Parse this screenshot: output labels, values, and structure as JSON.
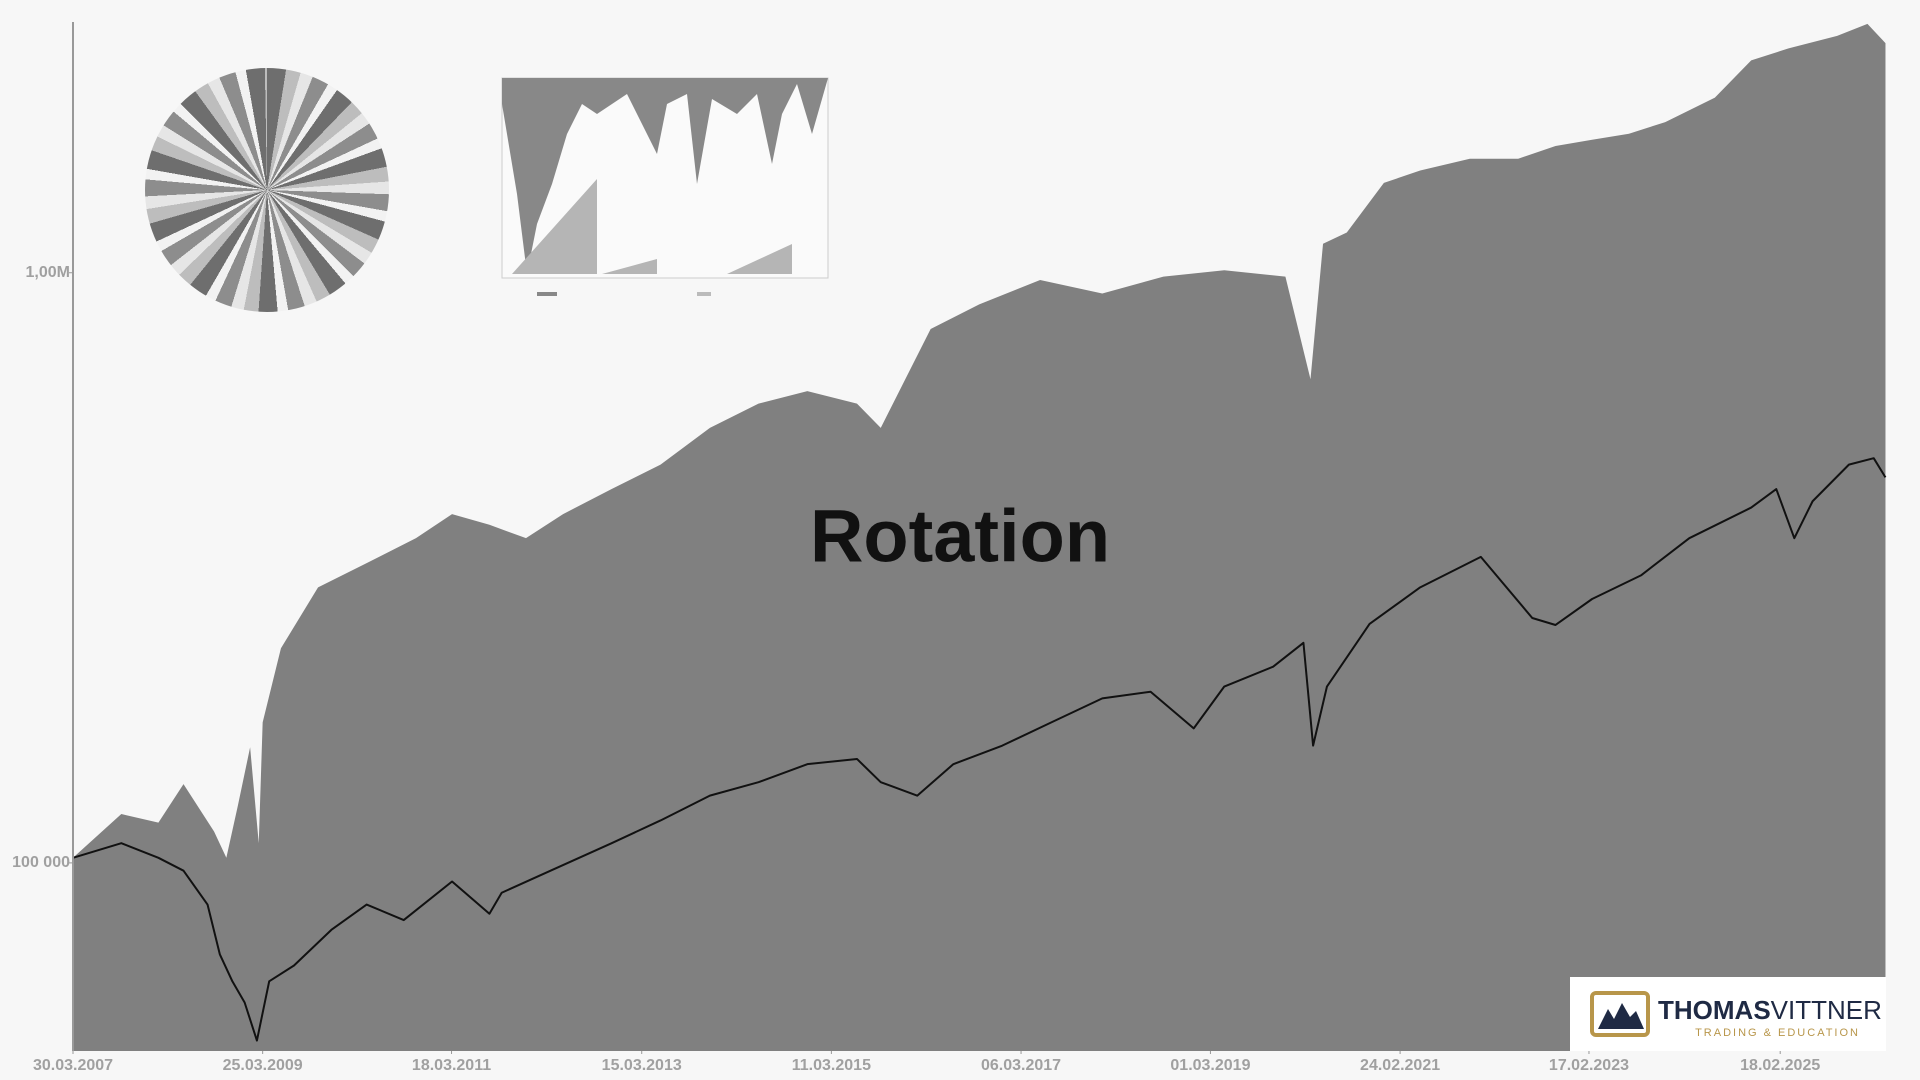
{
  "chart_data": {
    "type": "area-line",
    "title": "Rotation",
    "log_y": true,
    "background": "#f7f7f7",
    "xlim": [
      "2007-03-30",
      "2026-03-30"
    ],
    "ylim": [
      48000,
      2660000
    ],
    "xticks": [
      {
        "value": "2007-03-30",
        "label": "30.03.2007"
      },
      {
        "value": "2009-03-25",
        "label": "25.03.2009"
      },
      {
        "value": "2011-03-18",
        "label": "18.03.2011"
      },
      {
        "value": "2013-03-15",
        "label": "15.03.2013"
      },
      {
        "value": "2015-03-11",
        "label": "11.03.2015"
      },
      {
        "value": "2017-03-06",
        "label": "06.03.2017"
      },
      {
        "value": "2019-03-01",
        "label": "01.03.2019"
      },
      {
        "value": "2021-02-24",
        "label": "24.02.2021"
      },
      {
        "value": "2023-02-17",
        "label": "17.02.2023"
      },
      {
        "value": "2025-02-18",
        "label": "18.02.2025"
      }
    ],
    "yticks": [
      {
        "value": 100000,
        "label": "100 000"
      },
      {
        "value": 1000000,
        "label": "1,00M"
      }
    ],
    "series": [
      {
        "kind": "area",
        "color": "#808080",
        "x": [
          "2007-03-30",
          "2007-10-01",
          "2008-02-20",
          "2008-05-26",
          "2008-09-20",
          "2008-11-06",
          "2008-12-20",
          "2009-02-05",
          "2009-03-10",
          "2009-03-25",
          "2009-06-03",
          "2009-10-23",
          "2010-04-27",
          "2010-11-02",
          "2011-03-20",
          "2011-08-10",
          "2011-12-28",
          "2012-05-18",
          "2012-11-20",
          "2013-05-26",
          "2013-12-01",
          "2014-06-05",
          "2014-12-09",
          "2015-06-17",
          "2015-09-16",
          "2016-03-25",
          "2016-09-27",
          "2017-05-18",
          "2018-01-11",
          "2018-09-02",
          "2019-04-23",
          "2019-12-13",
          "2020-03-18",
          "2020-05-05",
          "2020-08-04",
          "2020-12-24",
          "2021-05-12",
          "2021-11-18",
          "2022-05-22",
          "2022-10-12",
          "2023-03-01",
          "2023-07-20",
          "2023-12-06",
          "2024-06-13",
          "2024-10-30",
          "2025-03-22",
          "2025-09-24",
          "2026-01-18",
          "2026-03-28"
        ],
        "values": [
          102000,
          121000,
          117000,
          136000,
          113000,
          102000,
          125000,
          157000,
          108000,
          173000,
          231000,
          293000,
          322000,
          355000,
          390000,
          374000,
          355000,
          390000,
          430000,
          473000,
          546000,
          600000,
          630000,
          600000,
          546000,
          803000,
          884000,
          972000,
          922000,
          985000,
          1010000,
          985000,
          660000,
          1120000,
          1170000,
          1420000,
          1490000,
          1560000,
          1560000,
          1640000,
          1680000,
          1720000,
          1800000,
          1980000,
          2290000,
          2400000,
          2520000,
          2640000,
          2450000
        ]
      },
      {
        "kind": "line",
        "color": "#111111",
        "x": [
          "2007-03-30",
          "2007-10-01",
          "2008-02-20",
          "2008-05-26",
          "2008-08-26",
          "2008-10-12",
          "2008-11-29",
          "2009-01-15",
          "2009-03-03",
          "2009-04-19",
          "2009-07-23",
          "2009-12-13",
          "2010-04-27",
          "2010-09-16",
          "2011-03-20",
          "2011-08-10",
          "2011-09-26",
          "2012-03-31",
          "2012-11-20",
          "2013-05-26",
          "2013-12-01",
          "2014-06-05",
          "2014-12-09",
          "2015-06-17",
          "2015-09-16",
          "2016-02-03",
          "2016-06-20",
          "2016-12-24",
          "2017-06-30",
          "2018-01-11",
          "2018-07-15",
          "2018-12-27",
          "2019-04-23",
          "2019-10-27",
          "2020-02-20",
          "2020-03-28",
          "2020-05-20",
          "2020-10-30",
          "2021-05-12",
          "2021-12-30",
          "2022-07-15",
          "2022-10-12",
          "2023-03-01",
          "2023-09-04",
          "2024-03-07",
          "2024-10-30",
          "2025-02-03",
          "2025-04-13",
          "2025-06-22",
          "2025-11-08",
          "2026-02-11",
          "2026-03-28"
        ],
        "values": [
          102000,
          108000,
          102000,
          97000,
          85000,
          70000,
          63000,
          58000,
          50000,
          63000,
          67000,
          77000,
          85000,
          80000,
          93000,
          82000,
          89000,
          97000,
          108000,
          118000,
          130000,
          137000,
          147000,
          150000,
          137000,
          130000,
          147000,
          158000,
          173000,
          190000,
          195000,
          169000,
          199000,
          215000,
          236000,
          158000,
          199000,
          254000,
          293000,
          330000,
          260000,
          253000,
          280000,
          307000,
          355000,
          400000,
          430000,
          355000,
          410000,
          473000,
          485000,
          450000
        ]
      }
    ]
  },
  "logo": {
    "name_bold": "THOMAS",
    "name_light": "VITTNER",
    "tagline": "TRADING & EDUCATION"
  }
}
